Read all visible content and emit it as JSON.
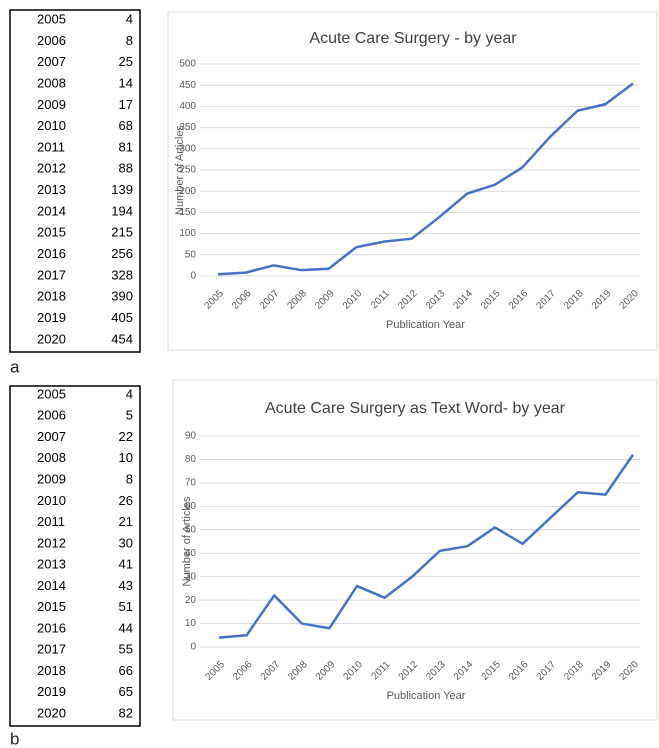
{
  "chart_data": [
    {
      "type": "line",
      "panel": "a",
      "title": "Acute Care Surgery - by year",
      "x_label": "Publication Year",
      "y_label": "Number of Articles",
      "categories": [
        "2005",
        "2006",
        "2007",
        "2008",
        "2009",
        "2010",
        "2011",
        "2012",
        "2013",
        "2014",
        "2015",
        "2016",
        "2017",
        "2018",
        "2019",
        "2020"
      ],
      "values": [
        4,
        8,
        25,
        14,
        17,
        68,
        81,
        88,
        139,
        194,
        215,
        256,
        328,
        390,
        405,
        454
      ],
      "color": "#4472c4",
      "ylim": [
        0,
        500
      ],
      "yticks": [
        0,
        50,
        100,
        150,
        200,
        250,
        300,
        350,
        400,
        450,
        500
      ],
      "grid": true
    },
    {
      "type": "line",
      "panel": "b",
      "title": "Acute Care Surgery as Text Word- by year",
      "x_label": "Publication Year",
      "y_label": "Number of Articles",
      "categories": [
        "2005",
        "2006",
        "2007",
        "2008",
        "2009",
        "2010",
        "2011",
        "2012",
        "2013",
        "2014",
        "2015",
        "2016",
        "2017",
        "2018",
        "2019",
        "2020"
      ],
      "values": [
        4,
        5,
        22,
        10,
        8,
        26,
        21,
        30,
        41,
        43,
        51,
        44,
        55,
        66,
        65,
        82
      ],
      "color": "#4472c4",
      "ylim": [
        0,
        90
      ],
      "yticks": [
        0,
        10,
        20,
        30,
        40,
        50,
        60,
        70,
        80,
        90
      ],
      "grid": true
    }
  ]
}
